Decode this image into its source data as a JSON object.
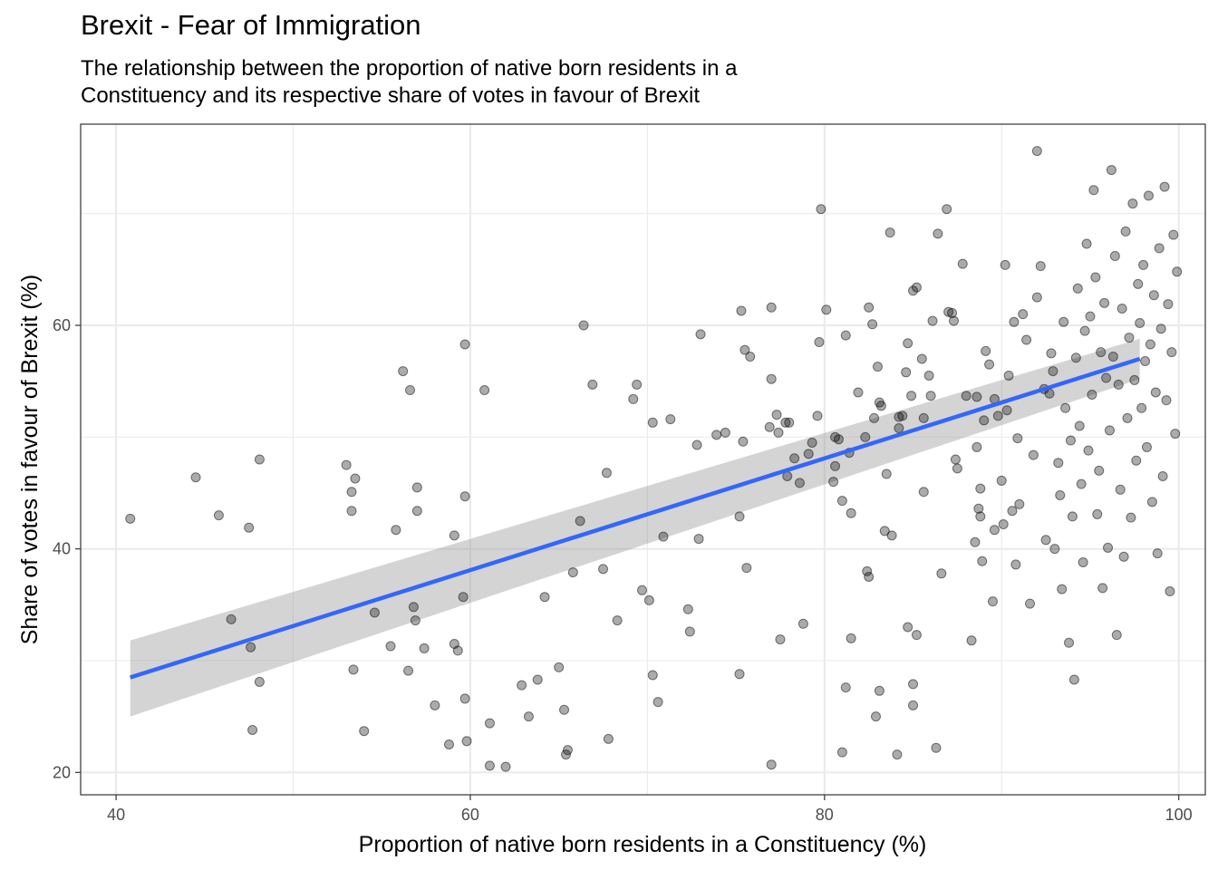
{
  "chart_data": {
    "type": "scatter",
    "title": "Brexit - Fear of Immigration",
    "subtitle": [
      "The relationship between the proportion of native born residents in a",
      "Constituency and its respective share of votes in favour of Brexit"
    ],
    "xlabel": "Proportion of native born residents in a Constituency (%)",
    "ylabel": "Share of votes in favour of Brexit (%)",
    "xlim": [
      38,
      101.5
    ],
    "ylim": [
      18,
      78
    ],
    "xticks": [
      40,
      60,
      80,
      100
    ],
    "yticks": [
      20,
      40,
      60
    ],
    "grid": true,
    "colors": {
      "points": "#000000",
      "fit_line": "#3366FF",
      "ribbon": "#999999",
      "panel_border": "#333333",
      "grid": "#ebebeb"
    },
    "fit": {
      "method": "linear",
      "x": [
        40.8,
        97.8
      ],
      "y": [
        28.5,
        57.0
      ],
      "ci_lower": [
        25.0,
        55.2
      ],
      "ci_upper": [
        31.8,
        58.8
      ]
    },
    "points": [
      [
        40.8,
        42.7
      ],
      [
        44.5,
        46.4
      ],
      [
        45.8,
        43.0
      ],
      [
        46.5,
        33.7
      ],
      [
        47.5,
        41.9
      ],
      [
        47.6,
        31.2
      ],
      [
        47.7,
        23.8
      ],
      [
        48.1,
        28.1
      ],
      [
        48.1,
        48.0
      ],
      [
        53.0,
        47.5
      ],
      [
        53.3,
        45.1
      ],
      [
        53.3,
        43.4
      ],
      [
        53.4,
        29.2
      ],
      [
        53.5,
        46.3
      ],
      [
        54.0,
        23.7
      ],
      [
        54.6,
        34.3
      ],
      [
        55.5,
        31.3
      ],
      [
        55.8,
        41.7
      ],
      [
        56.2,
        55.9
      ],
      [
        56.5,
        29.1
      ],
      [
        56.6,
        54.2
      ],
      [
        56.8,
        34.8
      ],
      [
        56.9,
        33.6
      ],
      [
        57.0,
        45.5
      ],
      [
        57.0,
        43.4
      ],
      [
        57.4,
        31.1
      ],
      [
        58.0,
        26.0
      ],
      [
        58.8,
        22.5
      ],
      [
        59.1,
        41.2
      ],
      [
        59.1,
        31.5
      ],
      [
        59.3,
        30.9
      ],
      [
        59.6,
        35.7
      ],
      [
        59.7,
        58.3
      ],
      [
        59.7,
        44.7
      ],
      [
        59.7,
        26.6
      ],
      [
        59.8,
        22.8
      ],
      [
        60.8,
        54.2
      ],
      [
        61.1,
        24.4
      ],
      [
        61.1,
        20.6
      ],
      [
        62.0,
        20.5
      ],
      [
        62.9,
        27.8
      ],
      [
        63.3,
        25.0
      ],
      [
        63.8,
        28.3
      ],
      [
        64.2,
        35.7
      ],
      [
        65.0,
        29.4
      ],
      [
        65.3,
        25.6
      ],
      [
        65.4,
        21.6
      ],
      [
        65.5,
        22.0
      ],
      [
        65.8,
        37.9
      ],
      [
        66.2,
        42.5
      ],
      [
        66.4,
        60.0
      ],
      [
        66.9,
        54.7
      ],
      [
        67.5,
        38.2
      ],
      [
        67.7,
        46.8
      ],
      [
        67.8,
        23.0
      ],
      [
        68.3,
        33.6
      ],
      [
        69.2,
        53.4
      ],
      [
        69.4,
        54.7
      ],
      [
        69.7,
        36.3
      ],
      [
        70.1,
        35.4
      ],
      [
        70.3,
        28.7
      ],
      [
        70.3,
        51.3
      ],
      [
        70.6,
        26.3
      ],
      [
        70.9,
        41.1
      ],
      [
        71.3,
        51.6
      ],
      [
        72.3,
        34.6
      ],
      [
        72.4,
        32.6
      ],
      [
        72.8,
        49.3
      ],
      [
        72.9,
        40.9
      ],
      [
        73.0,
        59.2
      ],
      [
        73.9,
        50.2
      ],
      [
        74.4,
        50.4
      ],
      [
        75.2,
        42.9
      ],
      [
        75.2,
        28.8
      ],
      [
        75.3,
        61.3
      ],
      [
        75.4,
        49.6
      ],
      [
        75.5,
        57.8
      ],
      [
        75.6,
        38.3
      ],
      [
        75.8,
        57.2
      ],
      [
        76.9,
        50.9
      ],
      [
        77.0,
        55.2
      ],
      [
        77.0,
        61.6
      ],
      [
        77.0,
        20.7
      ],
      [
        77.3,
        52.0
      ],
      [
        77.4,
        50.4
      ],
      [
        77.5,
        31.9
      ],
      [
        77.8,
        51.3
      ],
      [
        77.9,
        46.5
      ],
      [
        78.0,
        51.3
      ],
      [
        78.3,
        48.1
      ],
      [
        78.6,
        45.9
      ],
      [
        78.8,
        33.3
      ],
      [
        79.1,
        48.5
      ],
      [
        79.3,
        49.5
      ],
      [
        79.6,
        51.9
      ],
      [
        79.7,
        58.5
      ],
      [
        79.8,
        70.4
      ],
      [
        80.1,
        61.4
      ],
      [
        80.5,
        46.0
      ],
      [
        80.6,
        50.0
      ],
      [
        80.6,
        47.4
      ],
      [
        80.8,
        49.8
      ],
      [
        81.0,
        21.8
      ],
      [
        81.0,
        44.3
      ],
      [
        81.2,
        59.1
      ],
      [
        81.2,
        27.6
      ],
      [
        81.4,
        48.6
      ],
      [
        81.5,
        32.0
      ],
      [
        81.5,
        43.2
      ],
      [
        81.9,
        54.0
      ],
      [
        82.3,
        50.0
      ],
      [
        82.4,
        38.0
      ],
      [
        82.5,
        37.5
      ],
      [
        82.5,
        61.6
      ],
      [
        82.7,
        60.1
      ],
      [
        82.8,
        51.7
      ],
      [
        82.9,
        25.0
      ],
      [
        83.0,
        56.3
      ],
      [
        83.1,
        27.3
      ],
      [
        83.1,
        53.1
      ],
      [
        83.2,
        52.8
      ],
      [
        83.4,
        41.6
      ],
      [
        83.5,
        46.7
      ],
      [
        83.7,
        68.3
      ],
      [
        83.8,
        41.2
      ],
      [
        84.1,
        21.6
      ],
      [
        84.2,
        50.8
      ],
      [
        84.2,
        51.8
      ],
      [
        84.4,
        51.9
      ],
      [
        84.6,
        55.8
      ],
      [
        84.7,
        58.4
      ],
      [
        84.7,
        33.0
      ],
      [
        84.9,
        53.7
      ],
      [
        85.0,
        27.9
      ],
      [
        85.0,
        26.0
      ],
      [
        85.0,
        63.1
      ],
      [
        85.2,
        63.4
      ],
      [
        85.2,
        32.3
      ],
      [
        85.5,
        57.0
      ],
      [
        85.6,
        51.7
      ],
      [
        85.6,
        45.1
      ],
      [
        85.9,
        55.5
      ],
      [
        86.0,
        53.7
      ],
      [
        86.1,
        60.4
      ],
      [
        86.3,
        22.2
      ],
      [
        86.4,
        68.2
      ],
      [
        86.6,
        37.8
      ],
      [
        86.9,
        70.4
      ],
      [
        87.0,
        61.2
      ],
      [
        87.2,
        61.1
      ],
      [
        87.3,
        60.4
      ],
      [
        87.4,
        48.0
      ],
      [
        87.5,
        47.2
      ],
      [
        87.8,
        65.5
      ],
      [
        88.0,
        53.7
      ],
      [
        88.3,
        31.8
      ],
      [
        88.5,
        40.6
      ],
      [
        88.6,
        53.6
      ],
      [
        88.6,
        49.1
      ],
      [
        88.7,
        43.6
      ],
      [
        88.8,
        45.4
      ],
      [
        88.8,
        42.9
      ],
      [
        88.9,
        38.9
      ],
      [
        89.0,
        51.5
      ],
      [
        89.1,
        57.7
      ],
      [
        89.3,
        56.5
      ],
      [
        89.5,
        35.3
      ],
      [
        89.6,
        53.4
      ],
      [
        89.6,
        41.7
      ],
      [
        89.8,
        51.9
      ],
      [
        90.0,
        46.1
      ],
      [
        90.1,
        42.2
      ],
      [
        90.2,
        65.4
      ],
      [
        90.3,
        52.4
      ],
      [
        90.4,
        55.5
      ],
      [
        90.6,
        43.4
      ],
      [
        90.7,
        60.3
      ],
      [
        90.8,
        38.6
      ],
      [
        90.9,
        49.9
      ],
      [
        91.0,
        44.0
      ],
      [
        91.2,
        61.0
      ],
      [
        91.4,
        58.7
      ],
      [
        91.6,
        35.1
      ],
      [
        91.8,
        48.4
      ],
      [
        92.0,
        75.6
      ],
      [
        92.0,
        62.5
      ],
      [
        92.2,
        65.3
      ],
      [
        92.4,
        54.3
      ],
      [
        92.5,
        40.8
      ],
      [
        92.7,
        53.9
      ],
      [
        92.8,
        57.5
      ],
      [
        92.9,
        55.9
      ],
      [
        93.0,
        40.0
      ],
      [
        93.2,
        47.7
      ],
      [
        93.3,
        44.8
      ],
      [
        93.4,
        36.4
      ],
      [
        93.5,
        60.3
      ],
      [
        93.6,
        52.6
      ],
      [
        93.8,
        31.6
      ],
      [
        93.9,
        49.7
      ],
      [
        94.0,
        42.9
      ],
      [
        94.1,
        28.3
      ],
      [
        94.2,
        57.1
      ],
      [
        94.3,
        63.3
      ],
      [
        94.4,
        51.0
      ],
      [
        94.5,
        45.8
      ],
      [
        94.6,
        38.8
      ],
      [
        94.7,
        59.5
      ],
      [
        94.8,
        67.3
      ],
      [
        94.9,
        48.8
      ],
      [
        95.0,
        60.8
      ],
      [
        95.1,
        53.8
      ],
      [
        95.2,
        72.1
      ],
      [
        95.3,
        64.3
      ],
      [
        95.4,
        43.1
      ],
      [
        95.5,
        47.0
      ],
      [
        95.6,
        57.6
      ],
      [
        95.7,
        36.5
      ],
      [
        95.8,
        62.0
      ],
      [
        95.9,
        55.3
      ],
      [
        96.0,
        40.1
      ],
      [
        96.1,
        50.6
      ],
      [
        96.2,
        73.9
      ],
      [
        96.3,
        57.2
      ],
      [
        96.4,
        66.2
      ],
      [
        96.5,
        32.3
      ],
      [
        96.6,
        54.7
      ],
      [
        96.7,
        45.3
      ],
      [
        96.8,
        61.5
      ],
      [
        96.9,
        39.3
      ],
      [
        97.0,
        68.4
      ],
      [
        97.1,
        51.7
      ],
      [
        97.2,
        58.9
      ],
      [
        97.3,
        42.8
      ],
      [
        97.4,
        70.9
      ],
      [
        97.5,
        55.1
      ],
      [
        97.6,
        47.9
      ],
      [
        97.7,
        63.7
      ],
      [
        97.8,
        60.2
      ],
      [
        97.9,
        52.6
      ],
      [
        98.0,
        65.4
      ],
      [
        98.1,
        56.8
      ],
      [
        98.2,
        49.1
      ],
      [
        98.3,
        71.6
      ],
      [
        98.4,
        58.3
      ],
      [
        98.5,
        44.2
      ],
      [
        98.6,
        62.7
      ],
      [
        98.7,
        54.0
      ],
      [
        98.8,
        39.6
      ],
      [
        98.9,
        66.9
      ],
      [
        99.0,
        59.7
      ],
      [
        99.1,
        46.5
      ],
      [
        99.2,
        72.4
      ],
      [
        99.3,
        53.3
      ],
      [
        99.4,
        61.9
      ],
      [
        99.5,
        36.2
      ],
      [
        99.6,
        57.6
      ],
      [
        99.7,
        68.1
      ],
      [
        99.8,
        50.3
      ],
      [
        99.9,
        64.8
      ]
    ]
  }
}
